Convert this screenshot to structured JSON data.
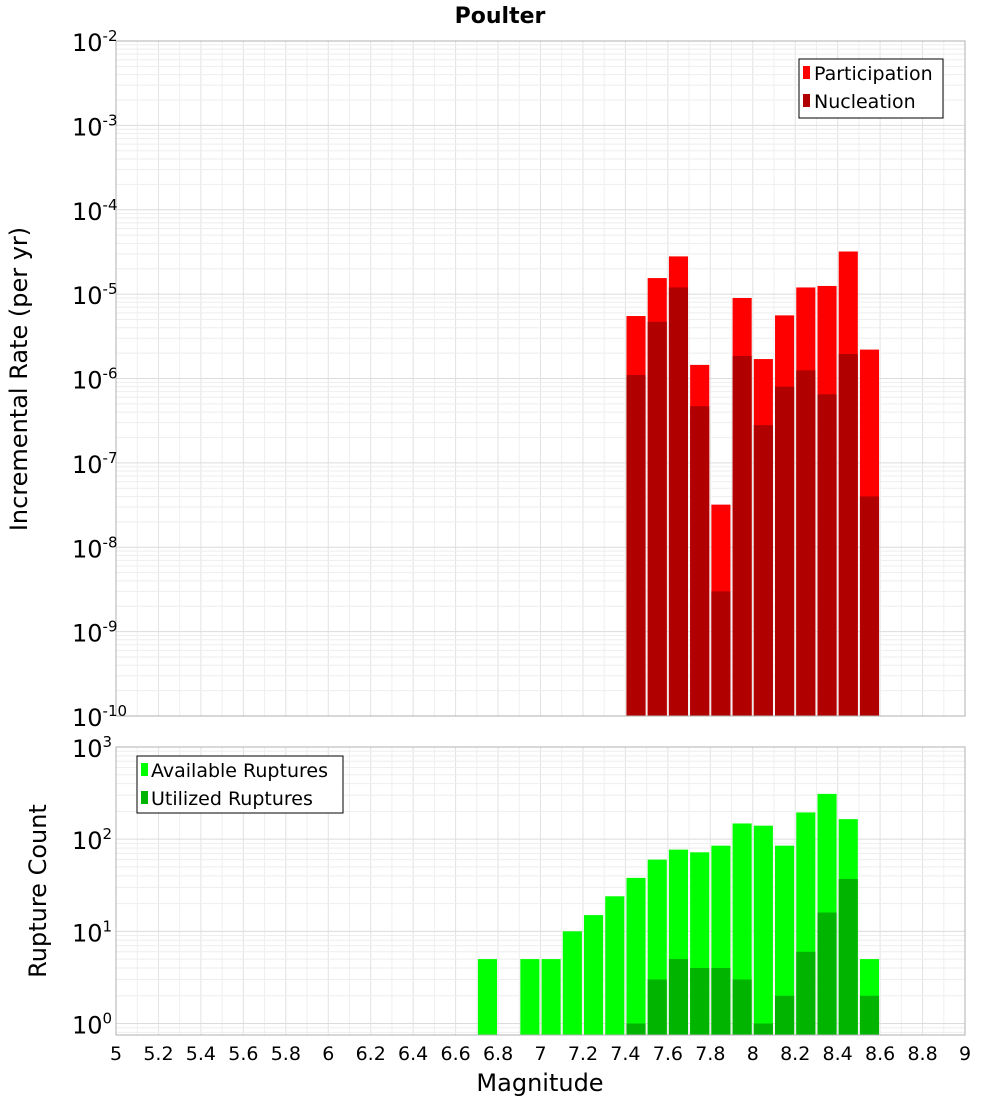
{
  "chart_data": [
    {
      "type": "bar",
      "title": "Poulter",
      "ylabel": "Incremental Rate (per yr)",
      "xlabel": "",
      "xlim": [
        5,
        9
      ],
      "ylim": [
        1e-10,
        0.01
      ],
      "yscale": "log",
      "grid": true,
      "legend_position": "top-right",
      "x": [
        7.45,
        7.55,
        7.65,
        7.75,
        7.85,
        7.95,
        8.05,
        8.15,
        8.25,
        8.35,
        8.45,
        8.55
      ],
      "series": [
        {
          "name": "Participation",
          "color": "#ff0000",
          "values": [
            5.5e-06,
            1.55e-05,
            2.8e-05,
            1.45e-06,
            3.2e-08,
            9e-06,
            1.7e-06,
            5.6e-06,
            1.2e-05,
            1.25e-05,
            3.2e-05,
            2.2e-06
          ]
        },
        {
          "name": "Nucleation",
          "color": "#b00000",
          "values": [
            1.1e-06,
            4.7e-06,
            1.2e-05,
            4.7e-07,
            3e-09,
            1.85e-06,
            2.8e-07,
            8e-07,
            1.25e-06,
            6.5e-07,
            1.95e-06,
            4e-08
          ]
        }
      ]
    },
    {
      "type": "bar",
      "title": "",
      "ylabel": "Rupture Count",
      "xlabel": "Magnitude",
      "xlim": [
        5,
        9
      ],
      "ylim": [
        0.75,
        1000
      ],
      "yscale": "log",
      "grid": true,
      "legend_position": "top-left",
      "x": [
        6.75,
        6.95,
        7.05,
        7.15,
        7.25,
        7.35,
        7.45,
        7.55,
        7.65,
        7.75,
        7.85,
        7.95,
        8.05,
        8.15,
        8.25,
        8.35,
        8.45,
        8.55
      ],
      "series": [
        {
          "name": "Available Ruptures",
          "color": "#00ff00",
          "values": [
            5,
            5,
            5,
            10,
            15,
            24,
            38,
            60,
            77,
            72,
            85,
            148,
            140,
            85,
            195,
            310,
            165,
            5
          ]
        },
        {
          "name": "Utilized Ruptures",
          "color": "#00b400",
          "values": [
            0,
            0,
            0,
            0,
            0,
            0,
            1,
            3,
            5,
            4,
            4,
            3,
            1,
            2,
            6,
            16,
            37,
            2
          ]
        }
      ]
    }
  ],
  "x_ticks": [
    "5",
    "5.2",
    "5.4",
    "5.6",
    "5.8",
    "6",
    "6.2",
    "6.4",
    "6.6",
    "6.8",
    "7",
    "7.2",
    "7.4",
    "7.6",
    "7.8",
    "8",
    "8.2",
    "8.4",
    "8.6",
    "8.8",
    "9"
  ],
  "top_y_ticks": [
    {
      "mant": "10",
      "exp": "-2"
    },
    {
      "mant": "10",
      "exp": "-3"
    },
    {
      "mant": "10",
      "exp": "-4"
    },
    {
      "mant": "10",
      "exp": "-5"
    },
    {
      "mant": "10",
      "exp": "-6"
    },
    {
      "mant": "10",
      "exp": "-7"
    },
    {
      "mant": "10",
      "exp": "-8"
    },
    {
      "mant": "10",
      "exp": "-9"
    },
    {
      "mant": "10",
      "exp": "-10"
    }
  ],
  "bottom_y_ticks": [
    {
      "mant": "10",
      "exp": "3"
    },
    {
      "mant": "10",
      "exp": "2"
    },
    {
      "mant": "10",
      "exp": "1"
    },
    {
      "mant": "10",
      "exp": "0"
    }
  ]
}
